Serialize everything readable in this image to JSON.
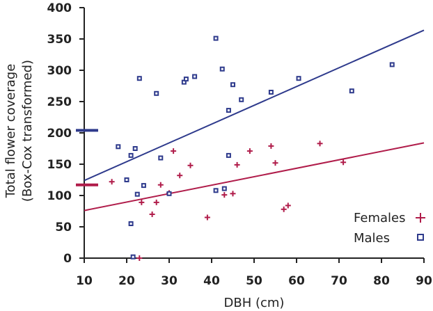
{
  "chart_data": {
    "type": "scatter",
    "title": "",
    "xlabel": "DBH (cm)",
    "ylabel_line1": "Total flower coverage",
    "ylabel_line2": "(Box-Cox transformed)",
    "xlim": [
      10,
      90
    ],
    "ylim": [
      0,
      400
    ],
    "xticks": [
      10,
      20,
      30,
      40,
      50,
      60,
      70,
      80,
      90
    ],
    "yticks": [
      0,
      50,
      100,
      150,
      200,
      250,
      300,
      350,
      400
    ],
    "grid": false,
    "legend_position": "bottom-right",
    "colors": {
      "females": "#b01c4a",
      "males": "#2e3a8c"
    },
    "series": [
      {
        "name": "Females",
        "marker": "plus",
        "points": [
          [
            16.5,
            122
          ],
          [
            23,
            0
          ],
          [
            23.5,
            89
          ],
          [
            26,
            70
          ],
          [
            27,
            89
          ],
          [
            28,
            117
          ],
          [
            30,
            104
          ],
          [
            31,
            171
          ],
          [
            32.5,
            132
          ],
          [
            35,
            148
          ],
          [
            39,
            65
          ],
          [
            43,
            101
          ],
          [
            45,
            103
          ],
          [
            46,
            149
          ],
          [
            49,
            171
          ],
          [
            54,
            179
          ],
          [
            55,
            152
          ],
          [
            57,
            78
          ],
          [
            58,
            84
          ],
          [
            65.5,
            183
          ],
          [
            71,
            153
          ]
        ],
        "fit": {
          "x": [
            10,
            90
          ],
          "y": [
            76,
            184
          ]
        },
        "mean": 117
      },
      {
        "name": "Males",
        "marker": "square",
        "points": [
          [
            18,
            178
          ],
          [
            20,
            125
          ],
          [
            21,
            55
          ],
          [
            21,
            164
          ],
          [
            21.5,
            2
          ],
          [
            22,
            175
          ],
          [
            22.5,
            102
          ],
          [
            23,
            287
          ],
          [
            24,
            116
          ],
          [
            27,
            263
          ],
          [
            28,
            160
          ],
          [
            30,
            103
          ],
          [
            33.5,
            281
          ],
          [
            34,
            286
          ],
          [
            36,
            290
          ],
          [
            41,
            108
          ],
          [
            41,
            351
          ],
          [
            42.5,
            302
          ],
          [
            43,
            111
          ],
          [
            44,
            236
          ],
          [
            44,
            164
          ],
          [
            45,
            277
          ],
          [
            47,
            253
          ],
          [
            54,
            265
          ],
          [
            60.5,
            287
          ],
          [
            73,
            267
          ],
          [
            82.5,
            309
          ]
        ],
        "fit": {
          "x": [
            10,
            90
          ],
          "y": [
            124,
            364
          ]
        },
        "mean": 204
      }
    ]
  }
}
